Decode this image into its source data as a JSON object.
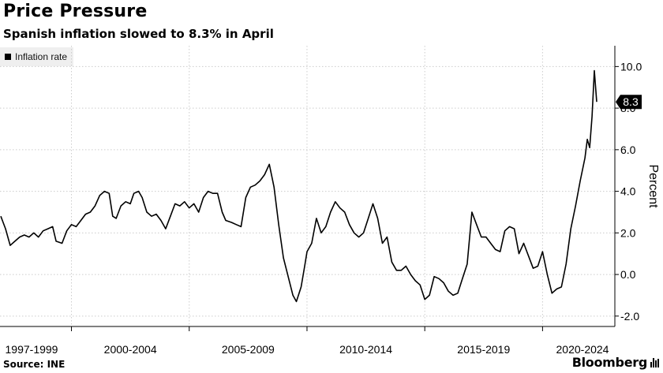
{
  "header": {
    "title": "Price Pressure",
    "subtitle": "Spanish inflation slowed to 8.3% in April"
  },
  "footer": {
    "source": "Source: INE",
    "brand": "Bloomberg"
  },
  "chart_data": {
    "type": "line",
    "title": "Price Pressure",
    "subtitle": "Spanish inflation slowed to 8.3% in April",
    "ylabel": "Percent",
    "xlabel": "",
    "ylim": [
      -2.5,
      11
    ],
    "yticks": [
      -2.0,
      0.0,
      2.0,
      4.0,
      6.0,
      8.0,
      10.0
    ],
    "ytick_labels": [
      "-2.0",
      "0.0",
      "2.0",
      "4.0",
      "6.0",
      "8.0",
      "10.0"
    ],
    "xlim": [
      1997.0,
      2022.5
    ],
    "x_gridlines": [
      2000,
      2005,
      2010,
      2015,
      2020
    ],
    "x_tick_labels": [
      {
        "label": "1997-1999",
        "x": 1998.2
      },
      {
        "label": "2000-2004",
        "x": 2002.5
      },
      {
        "label": "2005-2009",
        "x": 2007.5
      },
      {
        "label": "2010-2014",
        "x": 2012.5
      },
      {
        "label": "2015-2019",
        "x": 2017.5
      },
      {
        "label": "2020-2024",
        "x": 2022.0
      }
    ],
    "grid": true,
    "legend_position": "top-left",
    "colors": {
      "line": "#000000",
      "grid": "#cccccc",
      "callout": "#000000"
    },
    "last_value_label": "8.3",
    "series": [
      {
        "name": "Inflation rate",
        "points": [
          [
            1997.0,
            2.8
          ],
          [
            1997.2,
            2.2
          ],
          [
            1997.4,
            1.4
          ],
          [
            1997.6,
            1.6
          ],
          [
            1997.8,
            1.8
          ],
          [
            1998.0,
            1.9
          ],
          [
            1998.2,
            1.8
          ],
          [
            1998.4,
            2.0
          ],
          [
            1998.6,
            1.8
          ],
          [
            1998.8,
            2.1
          ],
          [
            1999.0,
            2.2
          ],
          [
            1999.2,
            2.3
          ],
          [
            1999.35,
            1.6
          ],
          [
            1999.6,
            1.5
          ],
          [
            1999.8,
            2.1
          ],
          [
            2000.0,
            2.4
          ],
          [
            2000.2,
            2.3
          ],
          [
            2000.4,
            2.6
          ],
          [
            2000.6,
            2.9
          ],
          [
            2000.8,
            3.0
          ],
          [
            2001.0,
            3.3
          ],
          [
            2001.2,
            3.8
          ],
          [
            2001.4,
            4.0
          ],
          [
            2001.6,
            3.9
          ],
          [
            2001.75,
            2.8
          ],
          [
            2001.9,
            2.7
          ],
          [
            2002.1,
            3.3
          ],
          [
            2002.3,
            3.5
          ],
          [
            2002.5,
            3.4
          ],
          [
            2002.65,
            3.9
          ],
          [
            2002.85,
            4.0
          ],
          [
            2003.0,
            3.7
          ],
          [
            2003.2,
            3.0
          ],
          [
            2003.4,
            2.8
          ],
          [
            2003.6,
            2.9
          ],
          [
            2003.8,
            2.6
          ],
          [
            2004.0,
            2.2
          ],
          [
            2004.2,
            2.8
          ],
          [
            2004.4,
            3.4
          ],
          [
            2004.6,
            3.3
          ],
          [
            2004.8,
            3.5
          ],
          [
            2005.0,
            3.2
          ],
          [
            2005.2,
            3.4
          ],
          [
            2005.4,
            3.0
          ],
          [
            2005.6,
            3.7
          ],
          [
            2005.8,
            4.0
          ],
          [
            2006.0,
            3.9
          ],
          [
            2006.2,
            3.9
          ],
          [
            2006.4,
            3.0
          ],
          [
            2006.55,
            2.6
          ],
          [
            2006.8,
            2.5
          ],
          [
            2007.0,
            2.4
          ],
          [
            2007.2,
            2.3
          ],
          [
            2007.4,
            3.7
          ],
          [
            2007.6,
            4.2
          ],
          [
            2007.8,
            4.3
          ],
          [
            2008.0,
            4.5
          ],
          [
            2008.2,
            4.8
          ],
          [
            2008.4,
            5.3
          ],
          [
            2008.6,
            4.2
          ],
          [
            2008.8,
            2.4
          ],
          [
            2009.0,
            0.8
          ],
          [
            2009.2,
            -0.1
          ],
          [
            2009.4,
            -1.0
          ],
          [
            2009.55,
            -1.3
          ],
          [
            2009.75,
            -0.6
          ],
          [
            2009.9,
            0.4
          ],
          [
            2010.0,
            1.1
          ],
          [
            2010.2,
            1.5
          ],
          [
            2010.4,
            2.7
          ],
          [
            2010.6,
            2.0
          ],
          [
            2010.8,
            2.3
          ],
          [
            2011.0,
            3.0
          ],
          [
            2011.2,
            3.5
          ],
          [
            2011.4,
            3.2
          ],
          [
            2011.6,
            3.0
          ],
          [
            2011.8,
            2.4
          ],
          [
            2012.0,
            2.0
          ],
          [
            2012.2,
            1.8
          ],
          [
            2012.4,
            2.0
          ],
          [
            2012.6,
            2.7
          ],
          [
            2012.8,
            3.4
          ],
          [
            2013.0,
            2.7
          ],
          [
            2013.2,
            1.5
          ],
          [
            2013.4,
            1.8
          ],
          [
            2013.6,
            0.6
          ],
          [
            2013.8,
            0.2
          ],
          [
            2014.0,
            0.2
          ],
          [
            2014.2,
            0.4
          ],
          [
            2014.4,
            0.0
          ],
          [
            2014.6,
            -0.3
          ],
          [
            2014.8,
            -0.5
          ],
          [
            2015.0,
            -1.2
          ],
          [
            2015.2,
            -1.0
          ],
          [
            2015.4,
            -0.1
          ],
          [
            2015.6,
            -0.2
          ],
          [
            2015.8,
            -0.4
          ],
          [
            2016.0,
            -0.8
          ],
          [
            2016.2,
            -1.0
          ],
          [
            2016.4,
            -0.9
          ],
          [
            2016.6,
            -0.2
          ],
          [
            2016.8,
            0.5
          ],
          [
            2017.0,
            3.0
          ],
          [
            2017.2,
            2.4
          ],
          [
            2017.4,
            1.8
          ],
          [
            2017.6,
            1.8
          ],
          [
            2017.8,
            1.5
          ],
          [
            2018.0,
            1.2
          ],
          [
            2018.2,
            1.1
          ],
          [
            2018.4,
            2.1
          ],
          [
            2018.6,
            2.3
          ],
          [
            2018.8,
            2.2
          ],
          [
            2019.0,
            1.0
          ],
          [
            2019.2,
            1.5
          ],
          [
            2019.4,
            0.9
          ],
          [
            2019.6,
            0.3
          ],
          [
            2019.8,
            0.4
          ],
          [
            2020.0,
            1.1
          ],
          [
            2020.2,
            0.0
          ],
          [
            2020.4,
            -0.9
          ],
          [
            2020.6,
            -0.7
          ],
          [
            2020.8,
            -0.6
          ],
          [
            2021.0,
            0.5
          ],
          [
            2021.2,
            2.2
          ],
          [
            2021.4,
            3.3
          ],
          [
            2021.6,
            4.5
          ],
          [
            2021.8,
            5.6
          ],
          [
            2021.9,
            6.5
          ],
          [
            2022.0,
            6.1
          ],
          [
            2022.1,
            7.6
          ],
          [
            2022.2,
            9.8
          ],
          [
            2022.3,
            8.3
          ]
        ]
      }
    ]
  }
}
